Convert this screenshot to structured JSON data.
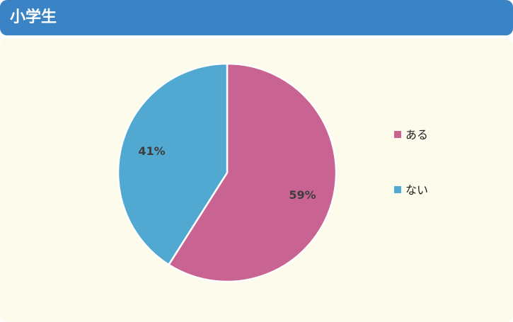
{
  "header": {
    "title": "小学生"
  },
  "colors": {
    "header_bg": "#3a83c5",
    "panel_bg": "#fdfbec",
    "slice_aru": "#c96391",
    "slice_nai": "#51a8d1"
  },
  "chart_data": {
    "type": "pie",
    "categories": [
      "ある",
      "ない"
    ],
    "values": [
      59,
      41
    ],
    "labels": [
      "59%",
      "41%"
    ],
    "colors": [
      "#c96391",
      "#51a8d1"
    ],
    "legend_position": "right"
  }
}
